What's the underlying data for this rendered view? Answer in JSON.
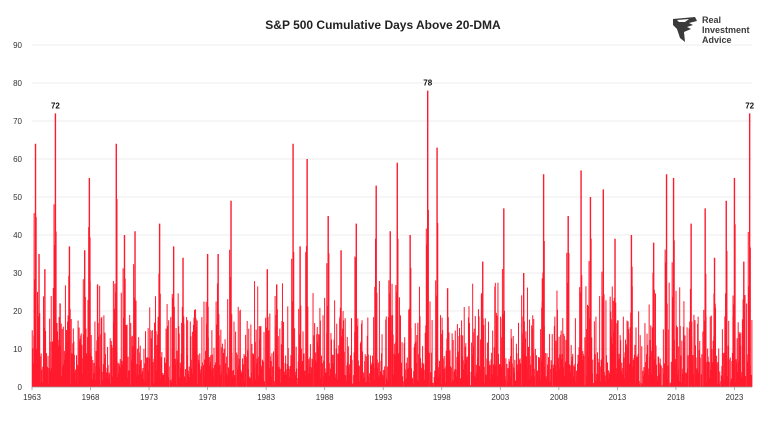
{
  "chart_data": {
    "type": "bar",
    "title": "S&P 500 Cumulative Days Above 20-DMA",
    "xlabel": "",
    "ylabel": "",
    "ylim": [
      0,
      90
    ],
    "y_ticks": [
      "0",
      "10",
      "20",
      "30",
      "40",
      "50",
      "60",
      "70",
      "80",
      "90"
    ],
    "x_ticks": [
      "1963",
      "1968",
      "1973",
      "1978",
      "1983",
      "1988",
      "1993",
      "1998",
      "2003",
      "2008",
      "2013",
      "2018",
      "2023"
    ],
    "x_range": [
      1963,
      2024.5
    ],
    "grid": "horizontal",
    "legend": "none",
    "bar_color": "#ff1a2e",
    "annotations": [
      {
        "x": 1965.0,
        "value": 72,
        "label": "72"
      },
      {
        "x": 1996.8,
        "value": 78,
        "label": "78"
      },
      {
        "x": 2024.3,
        "value": 72,
        "label": "72"
      }
    ],
    "peaks": [
      {
        "x": 1963.3,
        "value": 64
      },
      {
        "x": 1963.6,
        "value": 35
      },
      {
        "x": 1964.1,
        "value": 31
      },
      {
        "x": 1965.0,
        "value": 72
      },
      {
        "x": 1965.4,
        "value": 22
      },
      {
        "x": 1966.2,
        "value": 37
      },
      {
        "x": 1967.5,
        "value": 36
      },
      {
        "x": 1967.9,
        "value": 55
      },
      {
        "x": 1968.6,
        "value": 27
      },
      {
        "x": 1970.2,
        "value": 64
      },
      {
        "x": 1970.9,
        "value": 40
      },
      {
        "x": 1971.8,
        "value": 41
      },
      {
        "x": 1973.9,
        "value": 43
      },
      {
        "x": 1975.1,
        "value": 37
      },
      {
        "x": 1975.9,
        "value": 34
      },
      {
        "x": 1978.0,
        "value": 35
      },
      {
        "x": 1978.9,
        "value": 35
      },
      {
        "x": 1980.0,
        "value": 49
      },
      {
        "x": 1983.1,
        "value": 31
      },
      {
        "x": 1983.9,
        "value": 27
      },
      {
        "x": 1985.3,
        "value": 64
      },
      {
        "x": 1985.9,
        "value": 37
      },
      {
        "x": 1986.5,
        "value": 60
      },
      {
        "x": 1988.3,
        "value": 45
      },
      {
        "x": 1989.4,
        "value": 36
      },
      {
        "x": 1990.7,
        "value": 43
      },
      {
        "x": 1992.4,
        "value": 53
      },
      {
        "x": 1993.6,
        "value": 41
      },
      {
        "x": 1994.2,
        "value": 59
      },
      {
        "x": 1995.3,
        "value": 40
      },
      {
        "x": 1996.8,
        "value": 78
      },
      {
        "x": 1997.6,
        "value": 63
      },
      {
        "x": 1998.5,
        "value": 26
      },
      {
        "x": 2001.5,
        "value": 33
      },
      {
        "x": 2003.3,
        "value": 47
      },
      {
        "x": 2005.0,
        "value": 30
      },
      {
        "x": 2006.7,
        "value": 56
      },
      {
        "x": 2008.8,
        "value": 45
      },
      {
        "x": 2009.9,
        "value": 57
      },
      {
        "x": 2010.7,
        "value": 50
      },
      {
        "x": 2011.8,
        "value": 52
      },
      {
        "x": 2012.8,
        "value": 39
      },
      {
        "x": 2014.2,
        "value": 40
      },
      {
        "x": 2016.1,
        "value": 38
      },
      {
        "x": 2017.2,
        "value": 56
      },
      {
        "x": 2017.8,
        "value": 55
      },
      {
        "x": 2019.3,
        "value": 43
      },
      {
        "x": 2020.5,
        "value": 47
      },
      {
        "x": 2021.3,
        "value": 34
      },
      {
        "x": 2022.3,
        "value": 49
      },
      {
        "x": 2023.0,
        "value": 55
      },
      {
        "x": 2023.8,
        "value": 33
      },
      {
        "x": 2024.3,
        "value": 72
      }
    ]
  },
  "logo": {
    "line1": "Real",
    "line2": "Investment",
    "line3": "Advice",
    "icon": "eagle-head-icon",
    "color": "#3a3a3a"
  }
}
